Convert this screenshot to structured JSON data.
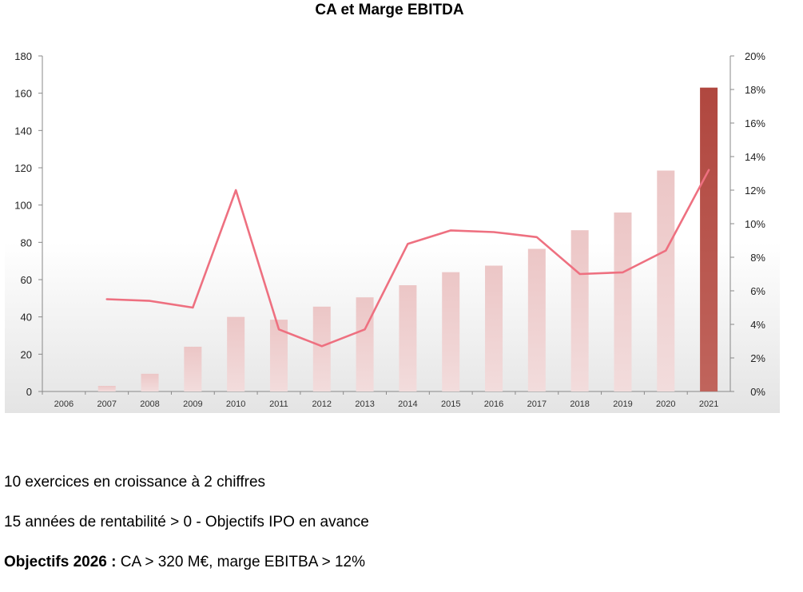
{
  "chart_data": {
    "type": "bar",
    "title": "CA et Marge EBITDA",
    "categories": [
      "2006",
      "2007",
      "2008",
      "2009",
      "2010",
      "2011",
      "2012",
      "2013",
      "2014",
      "2015",
      "2016",
      "2017",
      "2018",
      "2019",
      "2020",
      "2021"
    ],
    "series": [
      {
        "type": "bar",
        "axis": "left",
        "values": [
          0,
          3,
          9.5,
          24,
          40,
          38.5,
          45.5,
          50.5,
          57,
          64,
          67.5,
          76.5,
          86.5,
          96,
          118.5,
          163
        ],
        "color": "#e8c2c2",
        "highlight_color": "#b5514b",
        "highlight_index": 15
      },
      {
        "type": "line",
        "axis": "right",
        "values": [
          null,
          5.5,
          5.4,
          5.0,
          12.0,
          3.7,
          2.7,
          3.7,
          8.8,
          9.6,
          9.5,
          9.2,
          7.0,
          7.1,
          8.4,
          13.2
        ],
        "unit": "%",
        "color": "#ee7080"
      }
    ],
    "y_left": {
      "ylim": [
        0,
        180
      ],
      "ticks": [
        "0",
        "20",
        "40",
        "60",
        "80",
        "100",
        "120",
        "140",
        "160",
        "180"
      ]
    },
    "y_right": {
      "ylim": [
        0,
        20
      ],
      "ticks": [
        "0%",
        "2%",
        "4%",
        "6%",
        "8%",
        "10%",
        "12%",
        "14%",
        "16%",
        "18%",
        "20%"
      ]
    },
    "grid": false,
    "legend": "none"
  },
  "notes": {
    "line1": "10 exercices en croissance à 2 chiffres",
    "line2": "15 années de rentabilité > 0 - Objectifs IPO en avance",
    "line3_bold": "Objectifs 2026 :",
    "line3_rest": " CA > 320 M€, marge EBITBA > 12%"
  }
}
